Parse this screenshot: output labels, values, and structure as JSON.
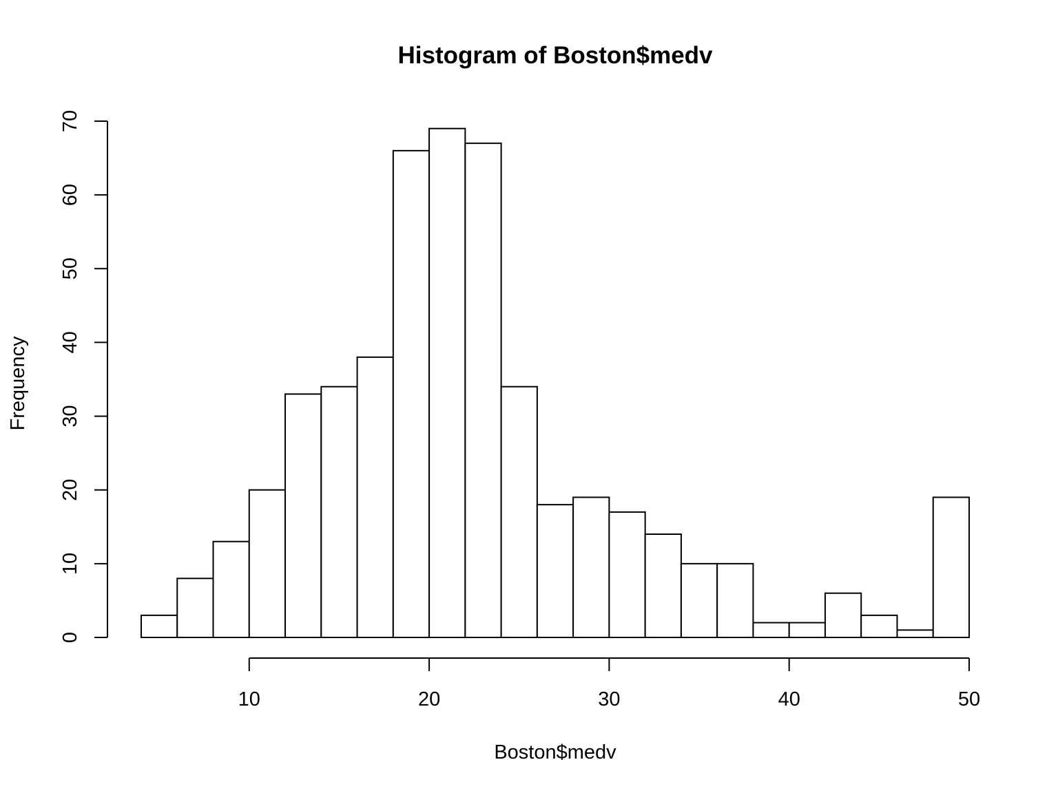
{
  "chart_data": {
    "type": "bar",
    "subtype": "histogram",
    "title": "Histogram of Boston$medv",
    "xlabel": "Boston$medv",
    "ylabel": "Frequency",
    "bin_edges": [
      4,
      6,
      8,
      10,
      12,
      14,
      16,
      18,
      20,
      22,
      24,
      26,
      28,
      30,
      32,
      34,
      36,
      38,
      40,
      42,
      44,
      46,
      48,
      50
    ],
    "values": [
      3,
      8,
      13,
      20,
      33,
      34,
      38,
      66,
      69,
      67,
      34,
      18,
      19,
      17,
      14,
      10,
      10,
      2,
      2,
      6,
      3,
      1,
      19
    ],
    "xlim": [
      4,
      50
    ],
    "ylim": [
      0,
      70
    ],
    "x_ticks": [
      10,
      20,
      30,
      40,
      50
    ],
    "y_ticks": [
      0,
      10,
      20,
      30,
      40,
      50,
      60,
      70
    ],
    "grid": false,
    "legend": "none",
    "colors": {
      "bar_fill": "#ffffff",
      "bar_stroke": "#000000",
      "background": "#ffffff"
    }
  }
}
